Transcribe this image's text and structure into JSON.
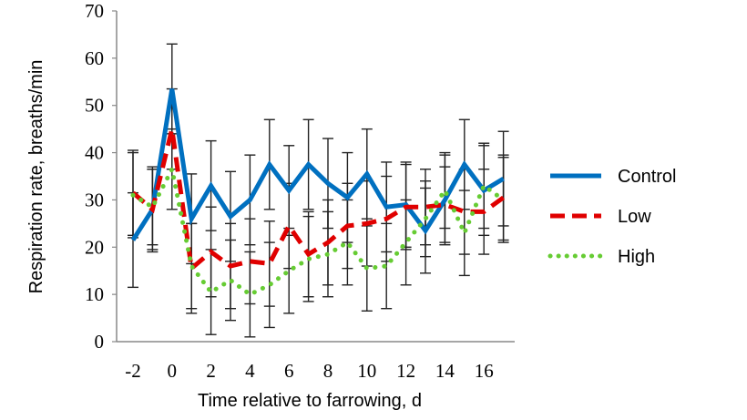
{
  "chart_data": {
    "type": "line",
    "title": "",
    "xlabel": "Time relative to farrowing, d",
    "ylabel": "Respiration rate, breaths/min",
    "ylim": [
      0,
      70
    ],
    "xlim": [
      -2,
      17
    ],
    "y_ticks": [
      "0",
      "10",
      "20",
      "30",
      "40",
      "50",
      "60",
      "70"
    ],
    "x_ticks": [
      "-2",
      "0",
      "2",
      "4",
      "6",
      "8",
      "10",
      "12",
      "14",
      "16"
    ],
    "grid": false,
    "legend_position": "right",
    "error_bars": true,
    "x": [
      -2,
      -1,
      0,
      1,
      2,
      3,
      4,
      5,
      6,
      7,
      8,
      9,
      10,
      11,
      12,
      13,
      14,
      15,
      16,
      17
    ],
    "series": [
      {
        "name": "Control",
        "color": "#0070C0",
        "style": "solid",
        "values": [
          21.5,
          28,
          53.5,
          26,
          33,
          26.5,
          30,
          37.5,
          32,
          37.5,
          33.5,
          30.5,
          35.5,
          28.5,
          29,
          23.5,
          30,
          37.5,
          32,
          34.5
        ],
        "error": [
          10,
          9,
          9.5,
          9.5,
          9.5,
          9.5,
          9.5,
          9.5,
          9.5,
          9.5,
          9.5,
          9.5,
          9.5,
          9.5,
          9,
          9,
          9.5,
          9.5,
          9.5,
          10
        ]
      },
      {
        "name": "Low",
        "color": "#E00000",
        "style": "dashed",
        "values": [
          31.5,
          28,
          45,
          15.5,
          19,
          16,
          17,
          16.5,
          24.5,
          18.5,
          21,
          24.5,
          25,
          26,
          28.5,
          28.5,
          29,
          27.5,
          27.5,
          30.5
        ],
        "error": [
          9,
          8.5,
          8.5,
          9.5,
          9.5,
          9,
          9,
          9,
          9,
          9,
          9,
          9,
          9,
          9,
          9,
          8,
          8,
          9,
          9,
          9
        ]
      },
      {
        "name": "High",
        "color": "#66CC33",
        "style": "dotted",
        "values": [
          31,
          28.5,
          36.5,
          16,
          10.5,
          13,
          10,
          12,
          15,
          17.5,
          18.5,
          21,
          15.5,
          16,
          21,
          26,
          32,
          23,
          33,
          30
        ],
        "error": [
          9,
          8,
          8.5,
          9,
          9,
          8.5,
          9,
          9,
          9,
          9,
          9,
          9,
          9,
          9,
          9,
          8,
          8,
          9,
          9,
          9
        ]
      }
    ]
  }
}
